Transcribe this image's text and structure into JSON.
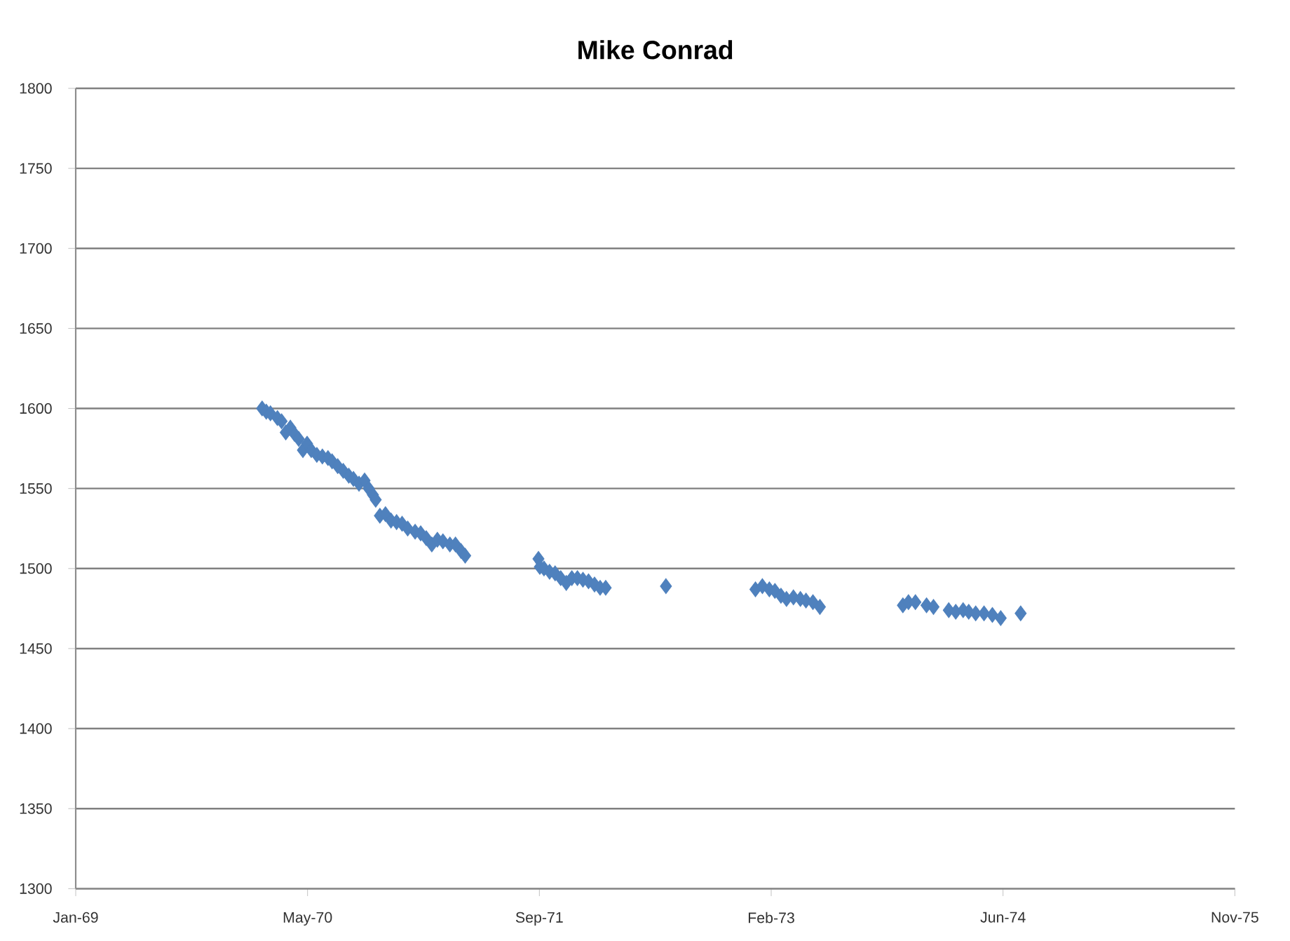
{
  "chart_data": {
    "type": "scatter",
    "title": "Mike Conrad",
    "marker": "diamond",
    "grid": "y",
    "xlim": [
      "1969-01-01",
      "1975-11-06"
    ],
    "xticks": [
      {
        "value": "1969-01-01",
        "label": "Jan-69"
      },
      {
        "value": "1970-05-16",
        "label": "May-70"
      },
      {
        "value": "1971-09-28",
        "label": "Sep-71"
      },
      {
        "value": "1973-02-09",
        "label": "Feb-73"
      },
      {
        "value": "1974-06-24",
        "label": "Jun-74"
      },
      {
        "value": "1975-11-06",
        "label": "Nov-75"
      }
    ],
    "ylim": [
      1300,
      1800
    ],
    "yticks": [
      1300,
      1350,
      1400,
      1450,
      1500,
      1550,
      1600,
      1650,
      1700,
      1750,
      1800
    ],
    "series": [
      {
        "color": "#4f81bd",
        "x": [
          "1970-02-07",
          "1970-02-16",
          "1970-02-25",
          "1970-03-12",
          "1970-03-21",
          "1970-03-30",
          "1970-04-09",
          "1970-04-18",
          "1970-04-27",
          "1970-05-06",
          "1970-05-15",
          "1970-05-24",
          "1970-06-05",
          "1970-06-17",
          "1970-06-29",
          "1970-07-08",
          "1970-07-20",
          "1970-08-01",
          "1970-08-13",
          "1970-08-23",
          "1970-09-04",
          "1970-09-16",
          "1970-09-25",
          "1970-10-04",
          "1970-10-10",
          "1970-10-19",
          "1970-10-31",
          "1970-11-12",
          "1970-11-24",
          "1970-12-06",
          "1970-12-18",
          "1971-01-03",
          "1971-01-15",
          "1971-01-27",
          "1971-02-08",
          "1971-02-20",
          "1971-03-04",
          "1971-03-19",
          "1971-03-31",
          "1971-04-12",
          "1971-04-21",
          "1971-09-26",
          "1971-09-29",
          "1971-10-08",
          "1971-10-20",
          "1971-11-01",
          "1971-11-13",
          "1971-11-25",
          "1971-12-07",
          "1971-12-19",
          "1971-12-31",
          "1972-01-12",
          "1972-01-25",
          "1972-02-06",
          "1972-02-18",
          "1972-06-27",
          "1973-01-06",
          "1973-01-21",
          "1973-02-05",
          "1973-02-17",
          "1973-03-02",
          "1973-03-14",
          "1973-03-29",
          "1973-04-13",
          "1973-04-25",
          "1973-05-10",
          "1973-05-25",
          "1973-11-20",
          "1973-12-02",
          "1973-12-17",
          "1974-01-10",
          "1974-01-25",
          "1974-02-27",
          "1974-03-14",
          "1974-03-30",
          "1974-04-11",
          "1974-04-26",
          "1974-05-14",
          "1974-06-01",
          "1974-06-19",
          "1974-08-01"
        ],
        "values": [
          1600,
          1598,
          1597,
          1594,
          1592,
          1585,
          1588,
          1584,
          1581,
          1574,
          1578,
          1574,
          1571,
          1570,
          1569,
          1567,
          1564,
          1561,
          1558,
          1556,
          1553,
          1555,
          1550,
          1546,
          1543,
          1533,
          1534,
          1530,
          1529,
          1528,
          1525,
          1523,
          1522,
          1519,
          1515,
          1518,
          1517,
          1515,
          1515,
          1511,
          1508,
          1506,
          1501,
          1500,
          1498,
          1497,
          1494,
          1491,
          1494,
          1494,
          1493,
          1492,
          1490,
          1488,
          1488,
          1489,
          1487,
          1489,
          1487,
          1486,
          1483,
          1481,
          1482,
          1481,
          1480,
          1479,
          1476,
          1477,
          1479,
          1479,
          1477,
          1476,
          1474,
          1473,
          1474,
          1473,
          1472,
          1472,
          1471,
          1469,
          1472
        ]
      }
    ]
  }
}
